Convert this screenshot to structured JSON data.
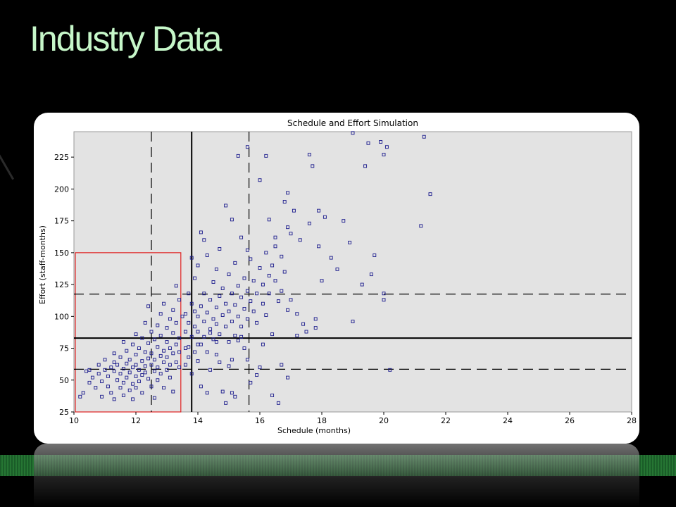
{
  "slide": {
    "title": "Industry Data"
  },
  "colors": {
    "background": "#000000",
    "title": "#c6f7c9",
    "plot_area": "#e3e3e3",
    "points": "#1a1a8c",
    "box": "#e02020",
    "lines": "#000000"
  },
  "chart_data": {
    "type": "scatter",
    "title": "Schedule and Effort Simulation",
    "xlabel": "Schedule (months)",
    "ylabel": "Effort (staff-months)",
    "xlim": [
      10,
      28
    ],
    "ylim": [
      25,
      245
    ],
    "x_ticks": [
      "10",
      "12",
      "14",
      "16",
      "18",
      "20",
      "22",
      "24",
      "26",
      "28"
    ],
    "y_ticks": [
      "25",
      "50",
      "75",
      "100",
      "125",
      "150",
      "175",
      "200",
      "225"
    ],
    "grid": false,
    "legend": "none",
    "reference_lines": {
      "x_solid": 13.8,
      "x_dashed": [
        12.5,
        15.65
      ],
      "y_solid": 83,
      "y_dashed": [
        58.5,
        117.5
      ]
    },
    "target_box": {
      "x": [
        10,
        13.45
      ],
      "y": [
        25,
        150
      ]
    },
    "points": [
      [
        10.2,
        37
      ],
      [
        10.3,
        40
      ],
      [
        10.5,
        48
      ],
      [
        10.5,
        58
      ],
      [
        10.6,
        52
      ],
      [
        10.7,
        44
      ],
      [
        10.8,
        55
      ],
      [
        10.8,
        62
      ],
      [
        10.9,
        49
      ],
      [
        10.9,
        37
      ],
      [
        11.0,
        58
      ],
      [
        11.0,
        66
      ],
      [
        11.1,
        53
      ],
      [
        11.1,
        45
      ],
      [
        11.2,
        60
      ],
      [
        11.2,
        40
      ],
      [
        11.3,
        57
      ],
      [
        11.3,
        71
      ],
      [
        11.3,
        35
      ],
      [
        11.4,
        50
      ],
      [
        11.4,
        62
      ],
      [
        11.5,
        55
      ],
      [
        11.5,
        44
      ],
      [
        11.5,
        68
      ],
      [
        11.6,
        59
      ],
      [
        11.6,
        48
      ],
      [
        11.6,
        38
      ],
      [
        11.7,
        63
      ],
      [
        11.7,
        73
      ],
      [
        11.7,
        52
      ],
      [
        11.8,
        56
      ],
      [
        11.8,
        42
      ],
      [
        11.8,
        66
      ],
      [
        11.9,
        60
      ],
      [
        11.9,
        47
      ],
      [
        11.9,
        78
      ],
      [
        11.9,
        35
      ],
      [
        12.0,
        70
      ],
      [
        12.0,
        53
      ],
      [
        12.0,
        62
      ],
      [
        12.0,
        44
      ],
      [
        12.1,
        58
      ],
      [
        12.1,
        75
      ],
      [
        12.1,
        49
      ],
      [
        12.2,
        65
      ],
      [
        12.2,
        54
      ],
      [
        12.2,
        83
      ],
      [
        12.2,
        40
      ],
      [
        12.3,
        61
      ],
      [
        12.3,
        72
      ],
      [
        12.3,
        56
      ],
      [
        12.3,
        95
      ],
      [
        12.4,
        67
      ],
      [
        12.4,
        51
      ],
      [
        12.4,
        79
      ],
      [
        12.5,
        62
      ],
      [
        12.5,
        88
      ],
      [
        12.5,
        45
      ],
      [
        12.5,
        71
      ],
      [
        12.6,
        57
      ],
      [
        12.6,
        82
      ],
      [
        12.6,
        66
      ],
      [
        12.6,
        36
      ],
      [
        12.7,
        76
      ],
      [
        12.7,
        93
      ],
      [
        12.7,
        60
      ],
      [
        12.7,
        50
      ],
      [
        12.8,
        69
      ],
      [
        12.8,
        85
      ],
      [
        12.8,
        102
      ],
      [
        12.8,
        55
      ],
      [
        12.9,
        73
      ],
      [
        12.9,
        64
      ],
      [
        12.9,
        110
      ],
      [
        12.9,
        44
      ],
      [
        13.0,
        80
      ],
      [
        13.0,
        91
      ],
      [
        13.0,
        58
      ],
      [
        13.0,
        68
      ],
      [
        13.1,
        75
      ],
      [
        13.1,
        98
      ],
      [
        13.1,
        62
      ],
      [
        13.1,
        52
      ],
      [
        13.2,
        87
      ],
      [
        13.2,
        71
      ],
      [
        13.2,
        105
      ],
      [
        13.2,
        41
      ],
      [
        13.3,
        78
      ],
      [
        13.3,
        64
      ],
      [
        13.3,
        95
      ],
      [
        13.3,
        124
      ],
      [
        13.4,
        83
      ],
      [
        13.4,
        60
      ],
      [
        13.4,
        72
      ],
      [
        13.4,
        113
      ],
      [
        12.0,
        86
      ],
      [
        11.6,
        80
      ],
      [
        12.4,
        108
      ],
      [
        11.3,
        64
      ],
      [
        10.4,
        57
      ],
      [
        13.6,
        62
      ],
      [
        13.6,
        75
      ],
      [
        13.6,
        88
      ],
      [
        13.6,
        102
      ],
      [
        13.7,
        95
      ],
      [
        13.7,
        118
      ],
      [
        13.7,
        68
      ],
      [
        13.8,
        84
      ],
      [
        13.8,
        110
      ],
      [
        13.8,
        55
      ],
      [
        13.9,
        92
      ],
      [
        13.9,
        130
      ],
      [
        13.9,
        72
      ],
      [
        14.0,
        100
      ],
      [
        14.0,
        88
      ],
      [
        14.0,
        140
      ],
      [
        14.0,
        65
      ],
      [
        14.1,
        108
      ],
      [
        14.1,
        78
      ],
      [
        14.1,
        45
      ],
      [
        14.2,
        96
      ],
      [
        14.2,
        118
      ],
      [
        14.2,
        84
      ],
      [
        14.3,
        103
      ],
      [
        14.3,
        72
      ],
      [
        14.3,
        148
      ],
      [
        14.4,
        90
      ],
      [
        14.4,
        113
      ],
      [
        14.4,
        58
      ],
      [
        14.5,
        98
      ],
      [
        14.5,
        82
      ],
      [
        14.5,
        127
      ],
      [
        14.6,
        107
      ],
      [
        14.6,
        94
      ],
      [
        14.6,
        70
      ],
      [
        14.7,
        116
      ],
      [
        14.7,
        86
      ],
      [
        14.7,
        153
      ],
      [
        14.8,
        101
      ],
      [
        14.8,
        122
      ],
      [
        14.8,
        41
      ],
      [
        14.9,
        92
      ],
      [
        14.9,
        110
      ],
      [
        14.9,
        187
      ],
      [
        15.0,
        104
      ],
      [
        15.0,
        80
      ],
      [
        15.0,
        133
      ],
      [
        15.1,
        96
      ],
      [
        15.1,
        118
      ],
      [
        15.1,
        66
      ],
      [
        15.2,
        109
      ],
      [
        15.2,
        142
      ],
      [
        15.2,
        85
      ],
      [
        15.3,
        100
      ],
      [
        15.3,
        124
      ],
      [
        15.3,
        226
      ],
      [
        15.4,
        115
      ],
      [
        15.4,
        92
      ],
      [
        15.4,
        162
      ],
      [
        15.5,
        106
      ],
      [
        15.5,
        130
      ],
      [
        15.5,
        75
      ],
      [
        15.6,
        120
      ],
      [
        15.6,
        98
      ],
      [
        15.6,
        233
      ],
      [
        15.7,
        112
      ],
      [
        15.7,
        145
      ],
      [
        15.7,
        48
      ],
      [
        15.8,
        104
      ],
      [
        15.8,
        128
      ],
      [
        15.9,
        118
      ],
      [
        15.9,
        95
      ],
      [
        16.0,
        138
      ],
      [
        16.0,
        60
      ],
      [
        16.0,
        207
      ],
      [
        16.1,
        125
      ],
      [
        16.1,
        110
      ],
      [
        16.2,
        150
      ],
      [
        16.2,
        101
      ],
      [
        16.2,
        226
      ],
      [
        16.3,
        132
      ],
      [
        16.3,
        118
      ],
      [
        16.3,
        176
      ],
      [
        16.4,
        140
      ],
      [
        16.4,
        86
      ],
      [
        16.4,
        38
      ],
      [
        16.5,
        128
      ],
      [
        16.5,
        155
      ],
      [
        16.6,
        112
      ],
      [
        16.6,
        32
      ],
      [
        16.7,
        147
      ],
      [
        16.7,
        120
      ],
      [
        16.8,
        190
      ],
      [
        16.8,
        135
      ],
      [
        16.9,
        105
      ],
      [
        16.9,
        197
      ],
      [
        17.0,
        113
      ],
      [
        17.0,
        165
      ],
      [
        17.1,
        183
      ],
      [
        17.2,
        102
      ],
      [
        17.3,
        160
      ],
      [
        17.4,
        94
      ],
      [
        17.5,
        88
      ],
      [
        17.6,
        173
      ],
      [
        17.6,
        227
      ],
      [
        17.7,
        218
      ],
      [
        17.8,
        98
      ],
      [
        17.9,
        155
      ],
      [
        18.0,
        128
      ],
      [
        18.1,
        178
      ],
      [
        18.3,
        146
      ],
      [
        18.5,
        137
      ],
      [
        18.7,
        175
      ],
      [
        18.9,
        158
      ],
      [
        19.0,
        96
      ],
      [
        19.0,
        244
      ],
      [
        19.3,
        125
      ],
      [
        19.4,
        218
      ],
      [
        19.5,
        236
      ],
      [
        19.6,
        133
      ],
      [
        19.7,
        148
      ],
      [
        19.9,
        237
      ],
      [
        20.0,
        227
      ],
      [
        20.0,
        113
      ],
      [
        20.1,
        233
      ],
      [
        20.2,
        58
      ],
      [
        21.2,
        171
      ],
      [
        21.3,
        241
      ],
      [
        21.5,
        196
      ],
      [
        20.0,
        118
      ],
      [
        14.2,
        160
      ],
      [
        14.6,
        137
      ],
      [
        15.1,
        176
      ],
      [
        15.6,
        152
      ],
      [
        16.5,
        162
      ],
      [
        17.9,
        183
      ],
      [
        13.8,
        146
      ],
      [
        14.1,
        166
      ],
      [
        16.9,
        170
      ],
      [
        15.4,
        84
      ],
      [
        14.3,
        40
      ],
      [
        14.9,
        32
      ],
      [
        15.1,
        40
      ],
      [
        15.2,
        37
      ],
      [
        16.9,
        52
      ],
      [
        16.7,
        62
      ],
      [
        16.1,
        78
      ],
      [
        15.9,
        54
      ],
      [
        17.2,
        85
      ],
      [
        17.8,
        91
      ],
      [
        13.5,
        100
      ],
      [
        13.7,
        76
      ],
      [
        13.9,
        104
      ],
      [
        14.0,
        78
      ],
      [
        14.4,
        87
      ],
      [
        14.6,
        80
      ],
      [
        14.7,
        64
      ],
      [
        15.0,
        61
      ],
      [
        15.3,
        81
      ],
      [
        15.6,
        66
      ]
    ]
  }
}
